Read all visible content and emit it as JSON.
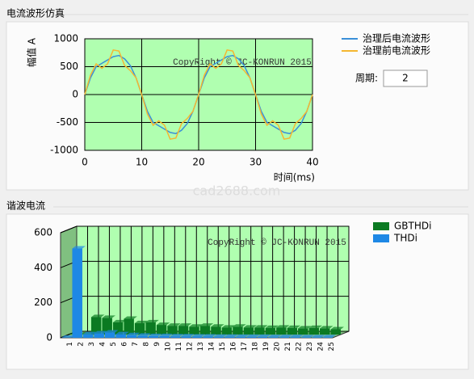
{
  "sections": [
    "电流波形仿真",
    "谐波电流"
  ],
  "period": {
    "label": "周期:",
    "value": "2"
  },
  "watermark": "cad2688.com",
  "chart_data": [
    {
      "type": "line",
      "ylabel": "幅值 A",
      "xlabel": "时间(ms)",
      "annotation": "CopyRight © JC-KONRUN 2015",
      "xlim": [
        0,
        40
      ],
      "xticks": [
        0,
        10,
        20,
        30,
        40
      ],
      "ylim": [
        -1000,
        1000
      ],
      "yticks": [
        -1000,
        -500,
        0,
        500,
        1000
      ],
      "grid": true,
      "x": [
        0,
        1,
        2,
        3,
        4,
        5,
        6,
        7,
        8,
        9,
        10,
        11,
        12,
        13,
        14,
        15,
        16,
        17,
        18,
        19,
        20,
        21,
        22,
        23,
        24,
        25,
        26,
        27,
        28,
        29,
        30,
        31,
        32,
        33,
        34,
        35,
        36,
        37,
        38,
        39,
        40
      ],
      "series": [
        {
          "name": "治理后电流波形",
          "color": "#3a8fd8",
          "values": [
            0,
            300,
            500,
            560,
            620,
            680,
            700,
            640,
            520,
            300,
            0,
            -300,
            -500,
            -560,
            -620,
            -680,
            -700,
            -640,
            -520,
            -300,
            0,
            300,
            500,
            560,
            620,
            680,
            700,
            640,
            520,
            300,
            0,
            -300,
            -500,
            -560,
            -620,
            -680,
            -700,
            -640,
            -520,
            -300,
            0
          ]
        },
        {
          "name": "治理前电流波形",
          "color": "#f5b731",
          "values": [
            0,
            350,
            550,
            470,
            550,
            800,
            780,
            520,
            430,
            300,
            0,
            -350,
            -550,
            -470,
            -550,
            -800,
            -780,
            -520,
            -430,
            -300,
            0,
            350,
            550,
            470,
            550,
            800,
            780,
            520,
            430,
            300,
            0,
            -350,
            -550,
            -470,
            -550,
            -800,
            -780,
            -520,
            -430,
            -300,
            0
          ]
        }
      ]
    },
    {
      "type": "bar3d",
      "annotation": "CopyRight © JC-KONRUN 2015",
      "ylim": [
        0,
        600
      ],
      "yticks": [
        0,
        200,
        400,
        600
      ],
      "grid": true,
      "categories": [
        "1",
        "2",
        "3",
        "4",
        "5",
        "6",
        "7",
        "8",
        "9",
        "10",
        "11",
        "12",
        "13",
        "14",
        "15",
        "16",
        "17",
        "18",
        "19",
        "20",
        "21",
        "22",
        "23",
        "24",
        "25"
      ],
      "series": [
        {
          "name": "GBTHDi",
          "color": "#0b7a22",
          "values": [
            0,
            0,
            100,
            95,
            70,
            90,
            65,
            70,
            55,
            50,
            50,
            45,
            50,
            45,
            40,
            45,
            40,
            40,
            38,
            40,
            38,
            35,
            38,
            35,
            30
          ]
        },
        {
          "name": "THDi",
          "color": "#1e88e5",
          "values": [
            0,
            510,
            20,
            25,
            30,
            20,
            15,
            12,
            10,
            10,
            8,
            8,
            7,
            7,
            6,
            6,
            5,
            5,
            5,
            4,
            4,
            4,
            3,
            3,
            3
          ]
        }
      ]
    }
  ]
}
